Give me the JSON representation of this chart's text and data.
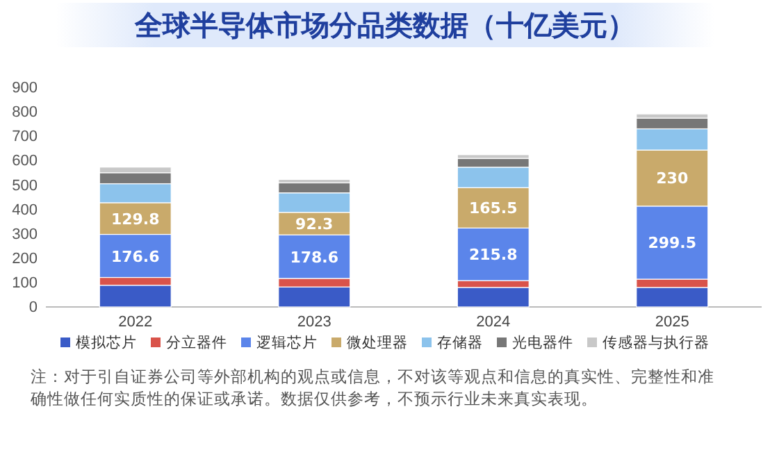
{
  "chart_data": {
    "type": "bar",
    "stacked": true,
    "title": "全球半导体市场分品类数据（十亿美元）",
    "categories": [
      "2022",
      "2023",
      "2024",
      "2025"
    ],
    "series": [
      {
        "name": "模拟芯片",
        "color": "#3a5bc7",
        "values": [
          89,
          82,
          80,
          80
        ]
      },
      {
        "name": "分立器件",
        "color": "#d9534a",
        "values": [
          32,
          35,
          28,
          34
        ]
      },
      {
        "name": "逻辑芯片",
        "color": "#5b85ea",
        "values": [
          176.6,
          178.6,
          215.8,
          299.5
        ],
        "value_labels": [
          "176.6",
          "178.6",
          "215.8",
          "299.5"
        ]
      },
      {
        "name": "微处理器",
        "color": "#c9aa6b",
        "values": [
          129.8,
          92.3,
          165.5,
          230
        ],
        "value_labels": [
          "129.8",
          "92.3",
          "165.5",
          "230"
        ]
      },
      {
        "name": "存储器",
        "color": "#8cc3ec",
        "values": [
          78,
          80,
          84,
          87
        ]
      },
      {
        "name": "光电器件",
        "color": "#777777",
        "values": [
          45,
          41,
          36,
          44
        ]
      },
      {
        "name": "传感器与执行器",
        "color": "#c8c8c8",
        "values": [
          23,
          14,
          15,
          17
        ]
      }
    ],
    "ylim": [
      0,
      900
    ],
    "yticks": [
      0,
      100,
      200,
      300,
      400,
      500,
      600,
      700,
      800,
      900
    ],
    "grid": false,
    "legend": "bottom",
    "annotations": [
      "注：对于引自证券公司等外部机构的观点或信息，不对该等观点和信息的真实性、完整性和准确性做任何实质性的保证或承诺。数据仅供参考，不预示行业未来真实表现。"
    ]
  }
}
